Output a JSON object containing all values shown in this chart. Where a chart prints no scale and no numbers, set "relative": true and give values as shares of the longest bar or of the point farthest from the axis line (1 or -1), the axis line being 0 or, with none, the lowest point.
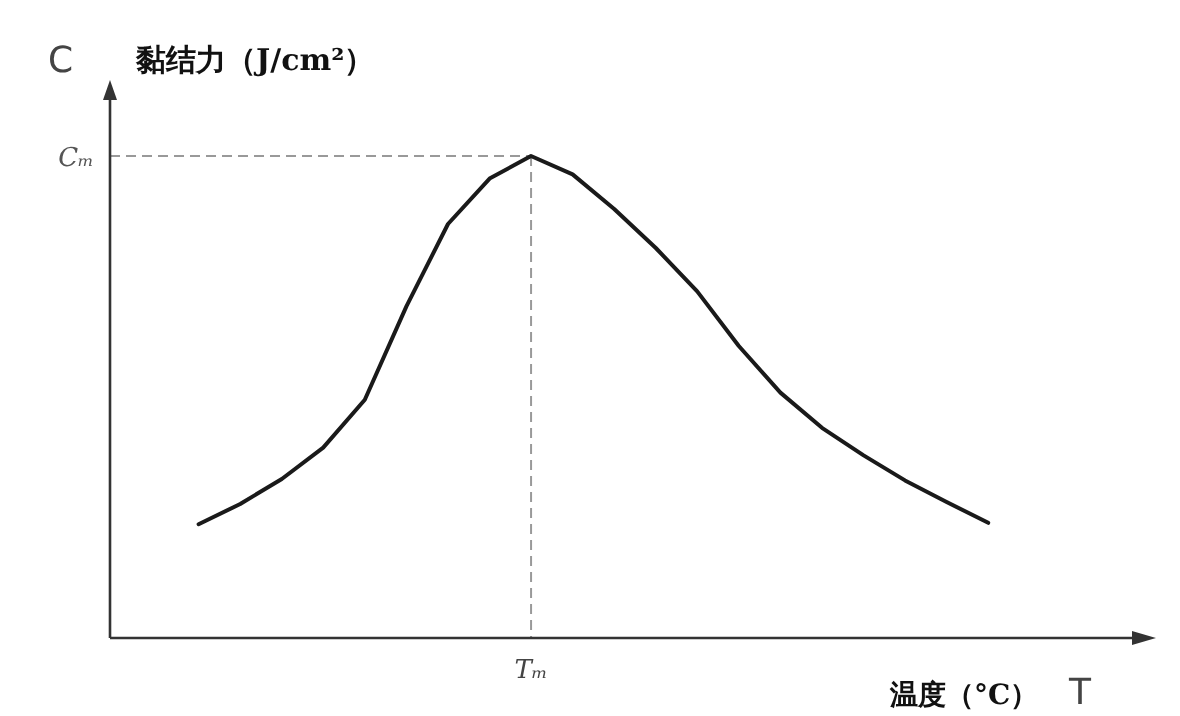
{
  "chart_data": {
    "type": "line",
    "relative": true,
    "ylabel": "黏结力（J/cm²）",
    "xlabel": "温度（°C）",
    "annotations": [
      "C",
      "T",
      "Tₘ"
    ],
    "categories": [
      null,
      null,
      null,
      null,
      null,
      null,
      null,
      null,
      null,
      null,
      null,
      null,
      null,
      null,
      null,
      null,
      null,
      null,
      null,
      null
    ],
    "values": [
      0.236,
      0.278,
      0.33,
      0.395,
      0.494,
      0.688,
      0.859,
      0.953,
      1,
      0.962,
      0.89,
      0.809,
      0.719,
      0.606,
      0.509,
      0.436,
      0.379,
      0.327,
      0.282,
      0.239
    ],
    "color": "#1a1a1a",
    "line_style": "solid",
    "ref_lines": [
      {
        "axis": "y",
        "value": 1,
        "label": "Cₘ",
        "color": "#999999",
        "line_style": "dashed"
      }
    ]
  }
}
